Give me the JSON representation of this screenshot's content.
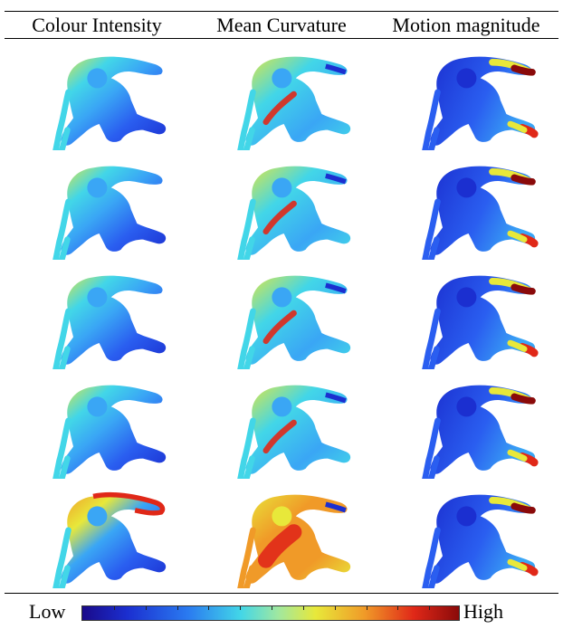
{
  "header": {
    "columns": [
      "Colour Intensity",
      "Mean Curvature",
      "Motion magnitude"
    ]
  },
  "legend": {
    "low_label": "Low",
    "high_label": "High",
    "colormap": "jet"
  },
  "figure": {
    "rows": 5,
    "cells": [
      [
        "intensity-a",
        "curvature-a",
        "motion-a"
      ],
      [
        "intensity-b",
        "curvature-b",
        "motion-b"
      ],
      [
        "intensity-c",
        "curvature-c",
        "motion-c"
      ],
      [
        "intensity-d",
        "curvature-d",
        "motion-d"
      ],
      [
        "intensity-e",
        "curvature-e",
        "motion-e"
      ]
    ],
    "palette": {
      "deep_blue": "#1b2fd0",
      "blue": "#2a5ef0",
      "light_blue": "#3aa6f5",
      "cyan": "#42d6e8",
      "yellow": "#e8e83a",
      "orange": "#f09a28",
      "red": "#e02818",
      "dark_red": "#8a0a0a"
    }
  }
}
